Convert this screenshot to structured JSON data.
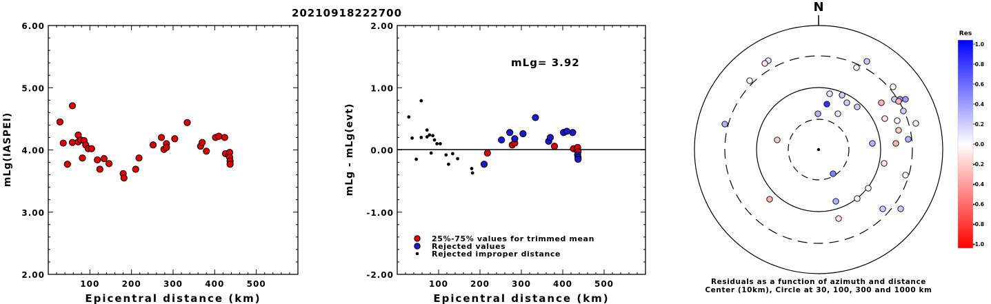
{
  "title": "20210918222700",
  "chart_data": [
    {
      "type": "scatter",
      "xlabel": "Epicentral distance (km)",
      "ylabel": "mLg(IASPEI)",
      "xlim": [
        0,
        600
      ],
      "ylim": [
        2.0,
        6.0
      ],
      "xticks": [
        {
          "v": 100,
          "label": "100"
        },
        {
          "v": 200,
          "label": "200"
        },
        {
          "v": 300,
          "label": "300"
        },
        {
          "v": 400,
          "label": "400"
        },
        {
          "v": 500,
          "label": "500"
        }
      ],
      "yticks": [
        {
          "v": 2.0,
          "label": "2.00"
        },
        {
          "v": 3.0,
          "label": "3.00"
        },
        {
          "v": 4.0,
          "label": "4.00"
        },
        {
          "v": 5.0,
          "label": "5.00"
        },
        {
          "v": 6.0,
          "label": "6.00"
        }
      ],
      "series": [
        {
          "color": "#dd0000",
          "points": [
            [
              28,
              4.45
            ],
            [
              36,
              4.11
            ],
            [
              46,
              3.77
            ],
            [
              58,
              4.71
            ],
            [
              58,
              4.12
            ],
            [
              72,
              4.24
            ],
            [
              72,
              4.13
            ],
            [
              78,
              4.16
            ],
            [
              82,
              3.87
            ],
            [
              86,
              4.15
            ],
            [
              90,
              4.08
            ],
            [
              96,
              4.02
            ],
            [
              104,
              4.02
            ],
            [
              118,
              3.84
            ],
            [
              124,
              3.69
            ],
            [
              134,
              3.86
            ],
            [
              146,
              3.78
            ],
            [
              180,
              3.62
            ],
            [
              182,
              3.55
            ],
            [
              210,
              3.69
            ],
            [
              218,
              3.87
            ],
            [
              252,
              4.08
            ],
            [
              272,
              4.2
            ],
            [
              278,
              4.01
            ],
            [
              284,
              4.1
            ],
            [
              284,
              4.04
            ],
            [
              304,
              4.18
            ],
            [
              334,
              4.44
            ],
            [
              366,
              4.06
            ],
            [
              370,
              4.12
            ],
            [
              380,
              3.98
            ],
            [
              402,
              4.2
            ],
            [
              410,
              4.22
            ],
            [
              424,
              4.2
            ],
            [
              426,
              3.94
            ],
            [
              434,
              3.91
            ],
            [
              436,
              3.96
            ],
            [
              436,
              3.88
            ],
            [
              437,
              3.82
            ],
            [
              437,
              3.77
            ]
          ]
        }
      ]
    },
    {
      "type": "scatter",
      "xlabel": "Epicentral distance (km)",
      "ylabel": "mLg - mLg(evt)",
      "annotation": "mLg= 3.92",
      "xlim": [
        0,
        600
      ],
      "ylim": [
        -2.0,
        2.0
      ],
      "reference_line": 0.0,
      "xticks": [
        {
          "v": 100,
          "label": "100"
        },
        {
          "v": 200,
          "label": "200"
        },
        {
          "v": 300,
          "label": "300"
        },
        {
          "v": 400,
          "label": "400"
        },
        {
          "v": 500,
          "label": "500"
        }
      ],
      "yticks": [
        {
          "v": -2.0,
          "label": "-2.00"
        },
        {
          "v": -1.0,
          "label": "-1.00"
        },
        {
          "v": 0.0,
          "label": "0.00"
        },
        {
          "v": 1.0,
          "label": "1.00"
        },
        {
          "v": 2.0,
          "label": "2.00"
        }
      ],
      "legend": [
        {
          "label": "25%-75% values for trimmed mean",
          "color": "#dd0000",
          "marker": "circle"
        },
        {
          "label": "Rejected values",
          "color": "#1a1acc",
          "marker": "circle"
        },
        {
          "label": "Rejected improper distance",
          "color": "#000000",
          "marker": "dot"
        }
      ],
      "series": [
        {
          "name": "25%-75% values for trimmed mean",
          "color": "#dd0000",
          "marker": "circle",
          "points": [
            [
              218,
              -0.05
            ],
            [
              278,
              0.08
            ],
            [
              284,
              0.11
            ],
            [
              380,
              0.06
            ],
            [
              426,
              0.02
            ],
            [
              434,
              0.0
            ],
            [
              436,
              0.04
            ],
            [
              437,
              -0.03
            ]
          ]
        },
        {
          "name": "Rejected values",
          "color": "#1a1acc",
          "marker": "circle",
          "points": [
            [
              210,
              -0.23
            ],
            [
              252,
              0.16
            ],
            [
              272,
              0.28
            ],
            [
              284,
              0.18
            ],
            [
              304,
              0.26
            ],
            [
              334,
              0.52
            ],
            [
              366,
              0.14
            ],
            [
              370,
              0.2
            ],
            [
              402,
              0.28
            ],
            [
              410,
              0.3
            ],
            [
              424,
              0.28
            ],
            [
              436,
              -0.08
            ],
            [
              437,
              -0.12
            ],
            [
              437,
              -0.15
            ]
          ]
        },
        {
          "name": "Rejected improper distance",
          "color": "#000000",
          "marker": "dot",
          "points": [
            [
              28,
              0.53
            ],
            [
              36,
              0.19
            ],
            [
              46,
              -0.15
            ],
            [
              58,
              0.79
            ],
            [
              58,
              0.2
            ],
            [
              72,
              0.32
            ],
            [
              72,
              0.21
            ],
            [
              78,
              0.24
            ],
            [
              82,
              -0.05
            ],
            [
              86,
              0.23
            ],
            [
              90,
              0.16
            ],
            [
              96,
              0.1
            ],
            [
              104,
              0.1
            ],
            [
              118,
              -0.08
            ],
            [
              124,
              -0.23
            ],
            [
              134,
              -0.06
            ],
            [
              146,
              -0.14
            ],
            [
              180,
              -0.3
            ],
            [
              182,
              -0.37
            ]
          ]
        }
      ]
    },
    {
      "type": "polar-scatter",
      "north_label": "N",
      "caption_line1": "Residuals as a function of azimuth and distance",
      "caption_line2": "Center (10km), Circle at 30, 100, 300 and 1000 km",
      "points": [
        {
          "x": 1114,
          "y": 88,
          "r": 0.1
        },
        {
          "x": 1109,
          "y": 92,
          "r": -0.1
        },
        {
          "x": 1087,
          "y": 117,
          "r": 0.0
        },
        {
          "x": 1257,
          "y": 89,
          "r": 0.2
        },
        {
          "x": 1242,
          "y": 98,
          "r": 0.0
        },
        {
          "x": 1051,
          "y": 180,
          "r": 0.3
        },
        {
          "x": 1203,
          "y": 136,
          "r": 0.1
        },
        {
          "x": 1221,
          "y": 138,
          "r": 0.2
        },
        {
          "x": 1199,
          "y": 151,
          "r": 0.8
        },
        {
          "x": 1228,
          "y": 149,
          "r": 0.2
        },
        {
          "x": 1243,
          "y": 155,
          "r": 0.2
        },
        {
          "x": 1215,
          "y": 165,
          "r": 0.1
        },
        {
          "x": 1186,
          "y": 165,
          "r": 0.3
        },
        {
          "x": 1278,
          "y": 149,
          "r": -0.3
        },
        {
          "x": 1295,
          "y": 126,
          "r": 0.0
        },
        {
          "x": 1297,
          "y": 144,
          "r": 0.2
        },
        {
          "x": 1305,
          "y": 144,
          "r": 0.4
        },
        {
          "x": 1313,
          "y": 144,
          "r": 0.4
        },
        {
          "x": 1303,
          "y": 147,
          "r": -0.3
        },
        {
          "x": 1310,
          "y": 161,
          "r": 0.2
        },
        {
          "x": 1283,
          "y": 172,
          "r": -0.1
        },
        {
          "x": 1301,
          "y": 175,
          "r": 0.0
        },
        {
          "x": 1328,
          "y": 179,
          "r": 0.0
        },
        {
          "x": 1303,
          "y": 189,
          "r": -0.2
        },
        {
          "x": 1317,
          "y": 202,
          "r": 0.3
        },
        {
          "x": 1299,
          "y": 208,
          "r": -0.3
        },
        {
          "x": 1265,
          "y": 208,
          "r": 0.3
        },
        {
          "x": 1127,
          "y": 203,
          "r": -0.2
        },
        {
          "x": 1282,
          "y": 237,
          "r": -0.1
        },
        {
          "x": 1313,
          "y": 254,
          "r": 0.0
        },
        {
          "x": 1208,
          "y": 252,
          "r": 0.5
        },
        {
          "x": 1259,
          "y": 273,
          "r": 0.0
        },
        {
          "x": 1243,
          "y": 288,
          "r": 0.0
        },
        {
          "x": 1212,
          "y": 292,
          "r": 0.3
        },
        {
          "x": 1116,
          "y": 289,
          "r": -0.3
        },
        {
          "x": 1216,
          "y": 317,
          "r": -0.1
        },
        {
          "x": 1280,
          "y": 303,
          "r": 0.2
        },
        {
          "x": 1306,
          "y": 303,
          "r": 0.2
        }
      ]
    }
  ],
  "colorbar": {
    "label": "Res",
    "ticks": [
      "1.0",
      "0.8",
      "0.6",
      "0.4",
      "0.2",
      "0.0",
      "-0.2",
      "-0.4",
      "-0.6",
      "-0.8",
      "-1.0"
    ]
  }
}
